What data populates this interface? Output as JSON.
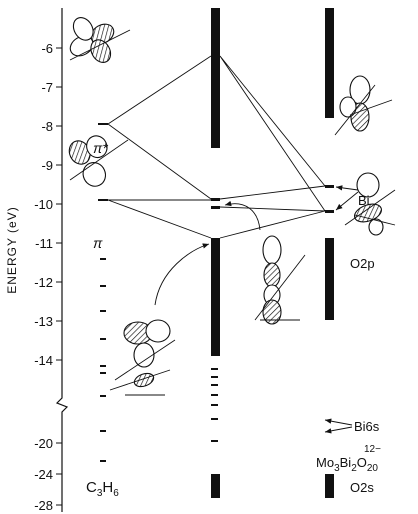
{
  "axis": {
    "title": "ENERGY (eV)",
    "ticks_upper": [
      -6,
      -7,
      -8,
      -9,
      -10,
      -11,
      -12,
      -13,
      -14
    ],
    "ticks_lower": [
      -20,
      -24,
      -28
    ]
  },
  "labels": {
    "pi_star": "π*",
    "pi": "π",
    "bi": "Bi",
    "o2p": "O2p",
    "bi6s": "Bi6s",
    "o2s": "O2s"
  },
  "molecule": [
    "C",
    "3",
    "H",
    "6"
  ],
  "cluster": {
    "formula": [
      "Mo",
      "3",
      "Bi",
      "2",
      "O",
      "20"
    ],
    "charge": "12−"
  }
}
